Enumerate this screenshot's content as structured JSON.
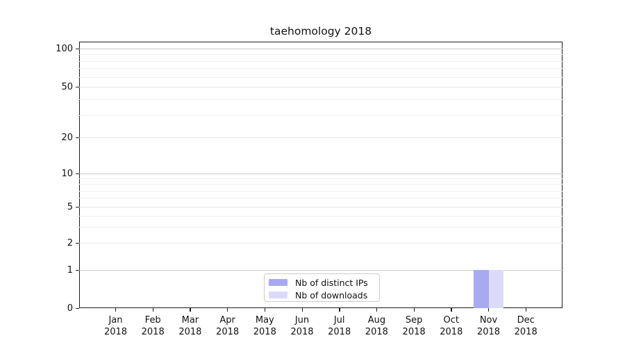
{
  "chart_data": {
    "type": "bar",
    "title": "taehomology 2018",
    "x_categories": [
      {
        "month": "Jan",
        "year": "2018"
      },
      {
        "month": "Feb",
        "year": "2018"
      },
      {
        "month": "Mar",
        "year": "2018"
      },
      {
        "month": "Apr",
        "year": "2018"
      },
      {
        "month": "May",
        "year": "2018"
      },
      {
        "month": "Jun",
        "year": "2018"
      },
      {
        "month": "Jul",
        "year": "2018"
      },
      {
        "month": "Aug",
        "year": "2018"
      },
      {
        "month": "Sep",
        "year": "2018"
      },
      {
        "month": "Oct",
        "year": "2018"
      },
      {
        "month": "Nov",
        "year": "2018"
      },
      {
        "month": "Dec",
        "year": "2018"
      }
    ],
    "series": [
      {
        "name": "Nb of distinct IPs",
        "color": "#a9a9f2",
        "values": [
          0,
          0,
          0,
          0,
          0,
          0,
          0,
          0,
          0,
          0,
          1,
          0
        ]
      },
      {
        "name": "Nb of downloads",
        "color": "#dbdbf9",
        "values": [
          0,
          0,
          0,
          0,
          0,
          0,
          0,
          0,
          0,
          0,
          1,
          0
        ]
      }
    ],
    "y_scale": "symlog",
    "y_tick_values": [
      0,
      1,
      2,
      5,
      10,
      20,
      50,
      100
    ],
    "y_tick_labels": [
      "0",
      "1",
      "2",
      "5",
      "10",
      "20",
      "50",
      "100"
    ],
    "ylim": [
      0,
      110
    ],
    "xlabel": "",
    "ylabel": "",
    "grid": "horizontal",
    "legend_position": "lower center",
    "colors": {
      "major_grid": "#c8c8c8",
      "labeled_minor_grid": "#e7e7e7",
      "minor_grid": "#efefef",
      "axis": "#1a1a1a",
      "text": "#111111"
    }
  }
}
